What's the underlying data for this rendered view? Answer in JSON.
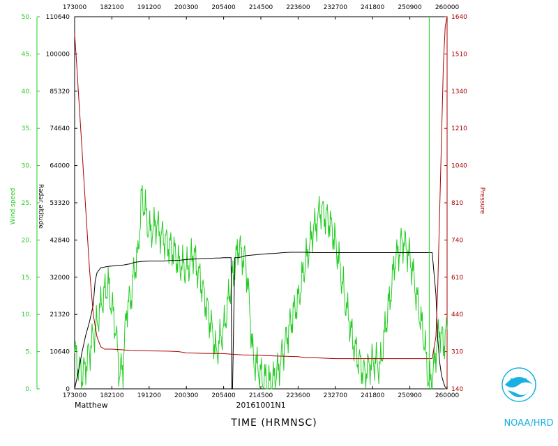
{
  "chart_data": {
    "type": "line",
    "title": "",
    "xlabel": "TIME (HRMNSC)",
    "storm_name": "Matthew",
    "flight_id": "20161001N1",
    "footer": "NOAA/HRD",
    "x_ticks": [
      "173000",
      "182100",
      "191200",
      "200300",
      "205400",
      "214500",
      "223600",
      "232700",
      "241800",
      "250900",
      "260000"
    ],
    "axes": {
      "wind_speed": {
        "label": "Wind speed",
        "ylim": [
          0,
          50
        ],
        "ticks": [
          "0.",
          "5.",
          "10.",
          "15.",
          "20.",
          "25.",
          "30.",
          "35.",
          "40.",
          "45.",
          "50."
        ],
        "color": "#22cc22"
      },
      "radar_altitude": {
        "label": "Radar altitude",
        "ylim": [
          0,
          110640
        ],
        "ticks": [
          "0",
          "10640",
          "21320",
          "32000",
          "42840",
          "53320",
          "64000",
          "74640",
          "85320",
          "100000",
          "110640"
        ],
        "color": "#000000"
      },
      "pressure": {
        "label": "Pressure",
        "ylim": [
          140,
          1640
        ],
        "ticks": [
          "140",
          "310",
          "440",
          "610",
          "740",
          "810",
          "1040",
          "1210",
          "1340",
          "1510",
          "1640"
        ],
        "color": "#aa0000"
      }
    },
    "series": [
      {
        "name": "Wind speed",
        "axis": "wind_speed",
        "color": "#22cc22",
        "x": [
          0,
          2,
          4,
          6,
          8,
          9,
          10,
          11,
          12,
          13,
          14,
          15,
          16,
          17,
          18,
          19,
          20,
          22,
          24,
          26,
          28,
          30,
          32,
          34,
          36,
          38,
          40,
          42,
          44,
          46,
          48,
          50,
          52,
          54,
          56,
          58,
          60,
          62,
          64,
          66,
          68,
          70,
          72,
          74,
          76,
          78,
          80,
          82,
          84,
          86,
          88,
          90,
          92,
          94,
          95,
          96,
          97,
          98,
          99,
          100
        ],
        "values": [
          4.8,
          1.5,
          5,
          9,
          13,
          14,
          11,
          8,
          2,
          3,
          11,
          12,
          16,
          18,
          26,
          24,
          21,
          22,
          20,
          19,
          17,
          16,
          18,
          14,
          10,
          5,
          8,
          14,
          19,
          17,
          4,
          2,
          0.5,
          1.5,
          5,
          9,
          12,
          17,
          21,
          24,
          23,
          20,
          14,
          8,
          4,
          2,
          4,
          3,
          10,
          17,
          20,
          18,
          12,
          6,
          1,
          1,
          5,
          8,
          6,
          8
        ]
      },
      {
        "name": "Radar altitude",
        "axis": "radar_altitude",
        "color": "#000000",
        "x": [
          0,
          1,
          2,
          3,
          4,
          5,
          5.5,
          6,
          7,
          8,
          9,
          10,
          11,
          12,
          13,
          14,
          15,
          16,
          18,
          20,
          22,
          24,
          26,
          28,
          30,
          32,
          34,
          36,
          38,
          39,
          40,
          41,
          42,
          42.2,
          42.4,
          43,
          44,
          45,
          46,
          48,
          50,
          52,
          54,
          56,
          58,
          60,
          62,
          64,
          66,
          68,
          70,
          72,
          74,
          76,
          78,
          80,
          82,
          84,
          86,
          88,
          90,
          92,
          94,
          95,
          96,
          97,
          97.5,
          98,
          98.5,
          99,
          99.5,
          100
        ],
        "values": [
          0,
          5000,
          11000,
          16000,
          20000,
          25000,
          32000,
          34500,
          36000,
          36200,
          36400,
          36500,
          36600,
          36700,
          36800,
          37000,
          37200,
          37600,
          37900,
          38000,
          38000,
          38000,
          38200,
          38200,
          38500,
          38600,
          38700,
          38800,
          38900,
          38900,
          39000,
          39000,
          39000,
          0,
          0,
          39000,
          39000,
          39300,
          39600,
          39800,
          40000,
          40200,
          40300,
          40500,
          40600,
          40600,
          40600,
          40500,
          40500,
          40500,
          40500,
          40500,
          40500,
          40500,
          40500,
          40500,
          40500,
          40500,
          40500,
          40500,
          40500,
          40500,
          40500,
          40500,
          40500,
          28000,
          15000,
          8000,
          4000,
          2000,
          500,
          0
        ]
      },
      {
        "name": "Pressure",
        "axis": "pressure",
        "color": "#aa0000",
        "x": [
          0,
          0.5,
          1,
          2,
          3,
          4,
          5,
          6,
          7,
          8,
          10,
          15,
          20,
          25,
          28,
          30,
          35,
          40,
          42,
          45,
          50,
          55,
          60,
          62,
          65,
          70,
          75,
          80,
          85,
          90,
          95,
          96,
          97,
          97.5,
          98,
          98.5,
          99,
          99.5,
          100
        ],
        "values": [
          1570,
          1460,
          1340,
          1100,
          860,
          620,
          440,
          350,
          310,
          300,
          300,
          295,
          293,
          292,
          290,
          285,
          283,
          282,
          280,
          277,
          275,
          272,
          270,
          265,
          265,
          262,
          262,
          262,
          262,
          262,
          262,
          262,
          350,
          550,
          850,
          1150,
          1450,
          1600,
          1640
        ]
      }
    ],
    "vertical_marker": {
      "x": 95.2,
      "color": "#22cc22"
    }
  }
}
